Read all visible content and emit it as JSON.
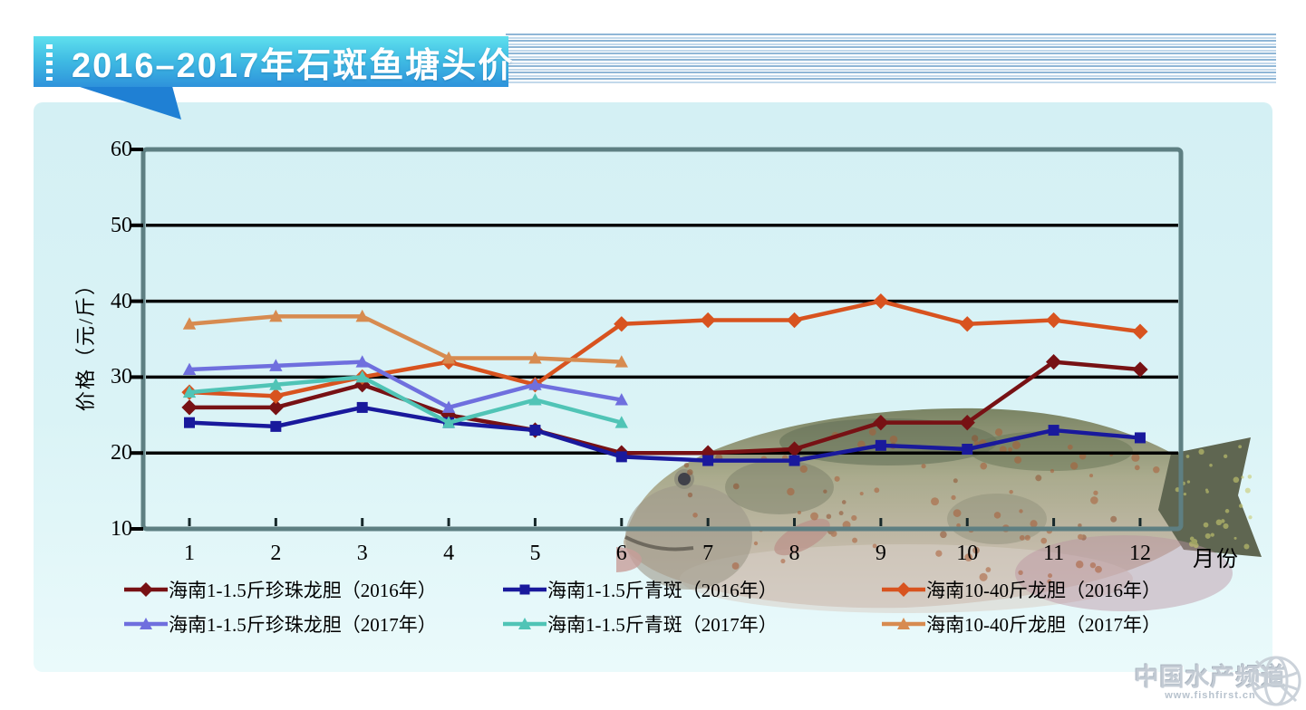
{
  "header": {
    "title": "2016–2017年石斑鱼塘头价"
  },
  "watermark": {
    "text": "中国水产频道",
    "url": "www.fishfirst.cn"
  },
  "chart_data": {
    "type": "line",
    "title": "2016–2017年石斑鱼塘头价",
    "xlabel": "月份",
    "ylabel": "价格（元/斤）",
    "x": [
      1,
      2,
      3,
      4,
      5,
      6,
      7,
      8,
      9,
      10,
      11,
      12
    ],
    "ylim": [
      10,
      60
    ],
    "ytick_step": 10,
    "grid": "horizontal",
    "gridline_values": [
      20,
      30,
      40,
      50
    ],
    "gridline_color": "#000000",
    "frame_color": "#5e7f82",
    "legend_position": "bottom",
    "series": [
      {
        "name": "海南1-1.5斤珍珠龙胆（2016年）",
        "color": "#771114",
        "marker": "diamond",
        "values": [
          26,
          26,
          29,
          25,
          23,
          20,
          20,
          20.5,
          24,
          24,
          32,
          31
        ]
      },
      {
        "name": "海南1-1.5斤青斑（2016年）",
        "color": "#19199c",
        "marker": "square",
        "values": [
          24,
          23.5,
          26,
          24,
          23,
          19.5,
          19,
          19,
          21,
          20.5,
          23,
          22
        ]
      },
      {
        "name": "海南10-40斤龙胆（2016年）",
        "color": "#d8531f",
        "marker": "diamond",
        "values": [
          28,
          27.5,
          30,
          32,
          29,
          37,
          37.5,
          37.5,
          40,
          37,
          37.5,
          36
        ]
      },
      {
        "name": "海南1-1.5斤珍珠龙胆（2017年）",
        "color": "#6f6fde",
        "marker": "triangle",
        "values": [
          31,
          31.5,
          32,
          26,
          29,
          27
        ]
      },
      {
        "name": "海南1-1.5斤青斑（2017年）",
        "color": "#50c4b6",
        "marker": "triangle",
        "values": [
          28,
          29,
          30,
          24,
          27,
          24
        ]
      },
      {
        "name": "海南10-40斤龙胆（2017年）",
        "color": "#d78b50",
        "marker": "triangle",
        "values": [
          37,
          38,
          38,
          32.5,
          32.5,
          32
        ]
      }
    ]
  }
}
